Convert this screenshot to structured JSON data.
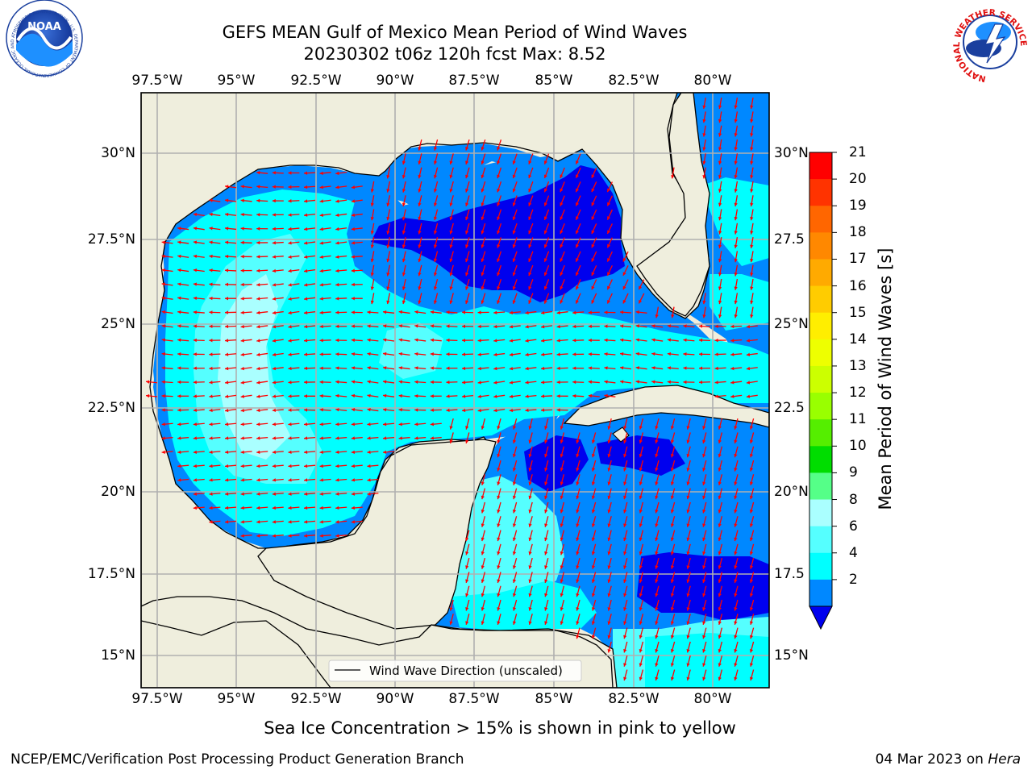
{
  "header": {
    "title_line1": "GEFS MEAN Gulf of Mexico Mean Period of Wind Waves",
    "title_line2": "20230302 t06z 120h fcst   Max: 8.52"
  },
  "logos": {
    "left": "NOAA",
    "left_ring_text": "NATIONAL OCEANIC AND ATMOSPHERIC ADMINISTRATION · U.S. DEPARTMENT OF COMMERCE",
    "right_ring_text": "NATIONAL WEATHER SERVICE"
  },
  "map": {
    "lon_ticks": [
      "97.5°W",
      "95°W",
      "92.5°W",
      "90°W",
      "87.5°W",
      "85°W",
      "82.5°W",
      "80°W"
    ],
    "lat_ticks_left": [
      "30°N",
      "27.5°N",
      "25°N",
      "22.5°N",
      "20°N",
      "17.5°N",
      "15°N"
    ],
    "lat_ticks_right": [
      "30°N",
      "27.5",
      "25°N",
      "22.5",
      "20°N",
      "17.5",
      "15°N"
    ],
    "legend_label": "Wind Wave Direction (unscaled)",
    "land_color": "#efeedd",
    "arrow_color": "#ff0000"
  },
  "colorbar": {
    "label": "Mean Period of Wind Waves [s]",
    "ticks": [
      "21",
      "20",
      "19",
      "18",
      "17",
      "16",
      "15",
      "14",
      "13",
      "12",
      "11",
      "10",
      "9",
      "8",
      "6",
      "4",
      "2"
    ],
    "colors": [
      "#ff0000",
      "#ff3300",
      "#ff6600",
      "#ff8800",
      "#ffaa00",
      "#ffcc00",
      "#ffee00",
      "#eeff00",
      "#ccff00",
      "#99ff00",
      "#55ee00",
      "#00dd00",
      "#55ff88",
      "#aaffff",
      "#55ffff",
      "#00ffff",
      "#0088ff",
      "#0000ee"
    ]
  },
  "footer": {
    "note": "Sea Ice Concentration > 15% is shown in pink to yellow",
    "credit_left": "NCEP/EMC/Verification Post Processing Product Generation Branch",
    "credit_right_date": "04 Mar 2023 on",
    "credit_right_host": "Hera"
  }
}
